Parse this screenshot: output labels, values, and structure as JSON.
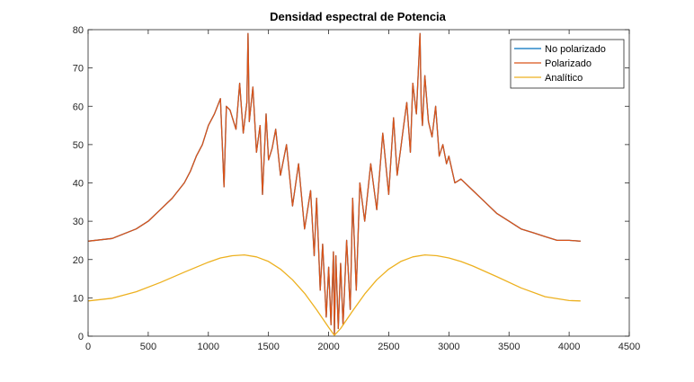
{
  "chart_data": {
    "type": "line",
    "title": "Densidad espectral de Potencia",
    "xlabel": "",
    "ylabel": "",
    "xlim": [
      0,
      4500
    ],
    "ylim": [
      0,
      80
    ],
    "xticks": [
      0,
      500,
      1000,
      1500,
      2000,
      2500,
      3000,
      3500,
      4000,
      4500
    ],
    "yticks": [
      0,
      10,
      20,
      30,
      40,
      50,
      60,
      70,
      80
    ],
    "grid": false,
    "legend_position": "top-right",
    "colors": {
      "No polarizado": "#0072bd",
      "Polarizado": "#d95319",
      "Analítico": "#edb120"
    },
    "series": [
      {
        "name": "No polarizado",
        "x": [
          0,
          200,
          400,
          500,
          600,
          700,
          800,
          850,
          900,
          950,
          1000,
          1050,
          1100,
          1130,
          1150,
          1180,
          1200,
          1230,
          1260,
          1290,
          1320,
          1330,
          1340,
          1370,
          1400,
          1430,
          1450,
          1480,
          1500,
          1530,
          1560,
          1600,
          1650,
          1700,
          1750,
          1800,
          1850,
          1880,
          1900,
          1930,
          1950,
          1980,
          2000,
          2020,
          2040,
          2048,
          2060,
          2080,
          2100,
          2120,
          2150,
          2180,
          2200,
          2230,
          2260,
          2300,
          2350,
          2400,
          2450,
          2500,
          2540,
          2570,
          2600,
          2620,
          2650,
          2680,
          2700,
          2730,
          2760,
          2770,
          2780,
          2800,
          2830,
          2860,
          2890,
          2920,
          2950,
          2980,
          3000,
          3050,
          3100,
          3200,
          3300,
          3400,
          3500,
          3600,
          3700,
          3800,
          3900,
          4000,
          4095
        ],
        "y": [
          24.8,
          25.5,
          28,
          30,
          33,
          36,
          40,
          43,
          47,
          50,
          55,
          58,
          62,
          39,
          60,
          59,
          57,
          54,
          66,
          53,
          61,
          79,
          56,
          65,
          48,
          55,
          37,
          58,
          46,
          49,
          54,
          42,
          50,
          34,
          45,
          28,
          38,
          21,
          36,
          12,
          24,
          5,
          18,
          3,
          22,
          0.5,
          21,
          2,
          19,
          3,
          25,
          7,
          36,
          12,
          40,
          30,
          45,
          33,
          53,
          37,
          57,
          42,
          49,
          54,
          61,
          48,
          66,
          58,
          79,
          60,
          55,
          68,
          56,
          52,
          60,
          47,
          50,
          45,
          47,
          40,
          41,
          38,
          35,
          32,
          30,
          28,
          27,
          26,
          25,
          25,
          24.8
        ]
      },
      {
        "name": "Polarizado",
        "x": [
          0,
          200,
          400,
          500,
          600,
          700,
          800,
          850,
          900,
          950,
          1000,
          1050,
          1100,
          1130,
          1150,
          1180,
          1200,
          1230,
          1260,
          1290,
          1320,
          1330,
          1340,
          1370,
          1400,
          1430,
          1450,
          1480,
          1500,
          1530,
          1560,
          1600,
          1650,
          1700,
          1750,
          1800,
          1850,
          1880,
          1900,
          1930,
          1950,
          1980,
          2000,
          2020,
          2040,
          2048,
          2060,
          2080,
          2100,
          2120,
          2150,
          2180,
          2200,
          2230,
          2260,
          2300,
          2350,
          2400,
          2450,
          2500,
          2540,
          2570,
          2600,
          2620,
          2650,
          2680,
          2700,
          2730,
          2760,
          2770,
          2780,
          2800,
          2830,
          2860,
          2890,
          2920,
          2950,
          2980,
          3000,
          3050,
          3100,
          3200,
          3300,
          3400,
          3500,
          3600,
          3700,
          3800,
          3900,
          4000,
          4095
        ],
        "y": [
          24.8,
          25.5,
          28,
          30,
          33,
          36,
          40,
          43,
          47,
          50,
          55,
          58,
          62,
          39,
          60,
          59,
          57,
          54,
          66,
          53,
          61,
          79,
          56,
          65,
          48,
          55,
          37,
          58,
          46,
          49,
          54,
          42,
          50,
          34,
          45,
          28,
          38,
          21,
          36,
          12,
          24,
          5,
          18,
          3,
          22,
          0.5,
          21,
          2,
          19,
          3,
          25,
          7,
          36,
          12,
          40,
          30,
          45,
          33,
          53,
          37,
          57,
          42,
          49,
          54,
          61,
          48,
          66,
          58,
          79,
          60,
          55,
          68,
          56,
          52,
          60,
          47,
          50,
          45,
          47,
          40,
          41,
          38,
          35,
          32,
          30,
          28,
          27,
          26,
          25,
          25,
          24.8
        ]
      },
      {
        "name": "Analítico",
        "x": [
          0,
          200,
          400,
          600,
          800,
          1000,
          1100,
          1200,
          1300,
          1400,
          1500,
          1600,
          1700,
          1800,
          1900,
          2000,
          2048,
          2100,
          2200,
          2300,
          2400,
          2500,
          2600,
          2700,
          2800,
          2900,
          3000,
          3100,
          3200,
          3400,
          3600,
          3800,
          4000,
          4095
        ],
        "y": [
          9.2,
          9.9,
          11.6,
          14.0,
          16.7,
          19.3,
          20.4,
          21.0,
          21.2,
          20.7,
          19.5,
          17.5,
          14.7,
          11.2,
          6.9,
          2.3,
          0.2,
          2.0,
          6.6,
          11.0,
          14.7,
          17.5,
          19.5,
          20.7,
          21.2,
          21.0,
          20.4,
          19.5,
          18.3,
          15.5,
          12.6,
          10.3,
          9.3,
          9.2
        ]
      }
    ]
  }
}
